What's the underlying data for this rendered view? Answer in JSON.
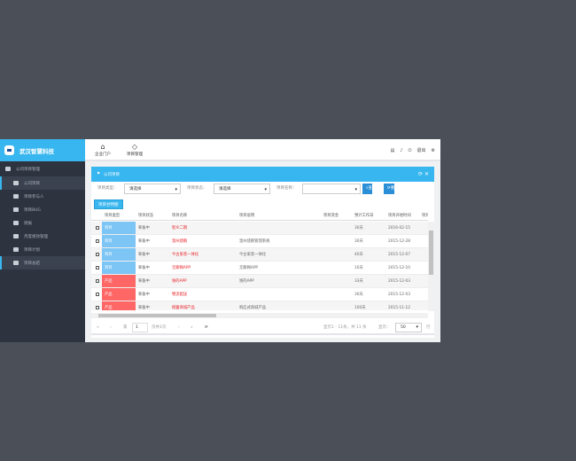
{
  "app": {
    "brand": "武汉智慧科技"
  },
  "sidebar": {
    "group": "公司项目管理",
    "items": [
      {
        "label": "公司项目"
      },
      {
        "label": "项目参与人"
      },
      {
        "label": "项目BUG"
      },
      {
        "label": "周报"
      },
      {
        "label": "月度绩效管理"
      },
      {
        "label": "项目计划"
      },
      {
        "label": "项目总结"
      }
    ]
  },
  "topnav": {
    "items": [
      {
        "label": "企业门户",
        "icon": "home-icon"
      },
      {
        "label": "项目管理",
        "icon": "diamond-icon"
      }
    ],
    "logout": "退出"
  },
  "panel": {
    "title": "公司项目"
  },
  "filter": {
    "type_label": "项目类型：",
    "type_value": "请选择",
    "status_label": "项目状态：",
    "status_value": "请选择",
    "name_label": "项目名称：",
    "name_value": "",
    "search": "查询",
    "reset": "重置"
  },
  "gantt_button": "项目甘特图",
  "table": {
    "headers": [
      "项目类型",
      "项目状态",
      "项目名称",
      "项目说明",
      "项目资金",
      "预计工作日",
      "项目开始时间",
      "项目结"
    ],
    "rows": [
      {
        "type": "项目",
        "status": "筹备中",
        "name": "智众二期",
        "desc": "",
        "fund": "",
        "days": "30天",
        "start": "2016-02-15"
      },
      {
        "type": "项目",
        "status": "筹备中",
        "name": "温州烧鹅",
        "desc": "温州烧鹅管理系统",
        "fund": "",
        "days": "30天",
        "start": "2015-12-28"
      },
      {
        "type": "项目",
        "status": "筹备中",
        "name": "今古家装一体化",
        "desc": "今古家装一体化",
        "fund": "",
        "days": "40天",
        "start": "2015-12-07"
      },
      {
        "type": "项目",
        "status": "筹备中",
        "name": "无聊网APP",
        "desc": "无聊网APP",
        "fund": "",
        "days": "10天",
        "start": "2015-12-10"
      },
      {
        "type": "产品",
        "status": "筹备中",
        "name": "谁的APP",
        "desc": "谁的APP",
        "fund": "",
        "days": "33天",
        "start": "2015-12-03"
      },
      {
        "type": "产品",
        "status": "筹备中",
        "name": "物流配送",
        "desc": "",
        "fund": "",
        "days": "30天",
        "start": "2015-12-03"
      },
      {
        "type": "产品",
        "status": "筹备中",
        "name": "橙蕾商城产品",
        "desc": "响应式商城产品",
        "fund": "",
        "days": "100天",
        "start": "2015-11-12"
      }
    ]
  },
  "colors": {
    "项目": "#7cc5f5",
    "产品": "#ff6666"
  },
  "pager": {
    "page_prefix": "第",
    "page": "1",
    "page_suffix": "页共1页",
    "summary": "显示1 - 11条，共 11 条",
    "show_label": "显示：",
    "page_size": "50",
    "rows_suffix": "行"
  }
}
